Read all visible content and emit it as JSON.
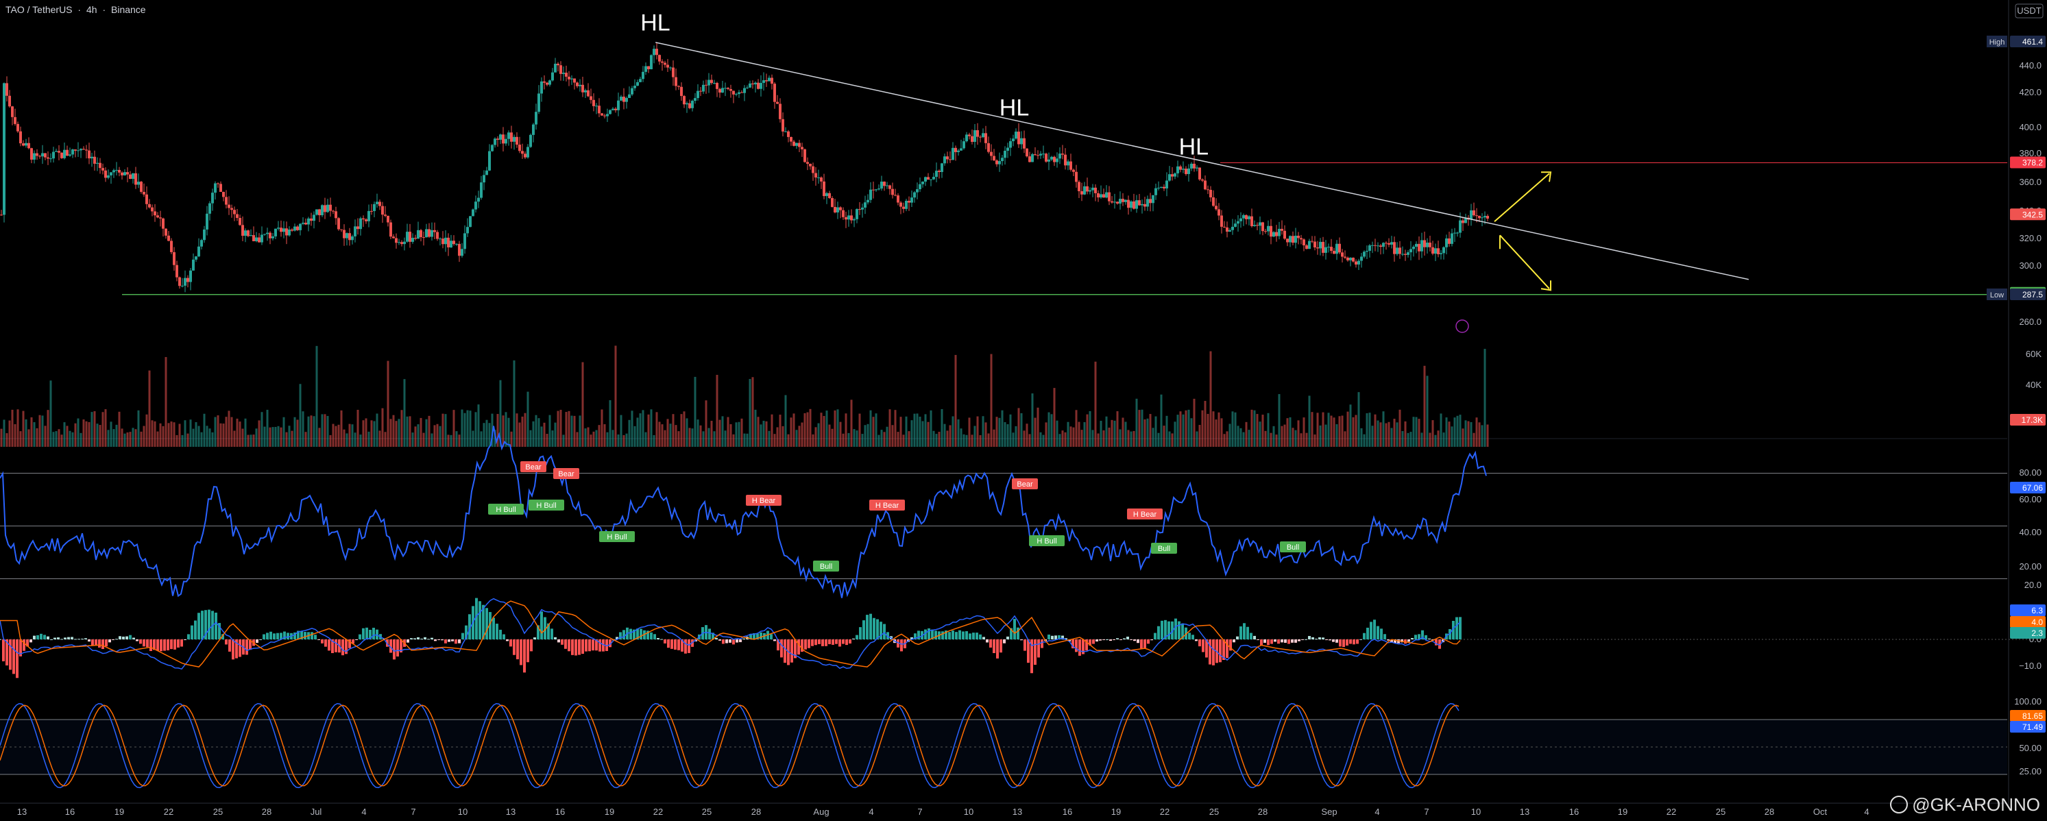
{
  "header": {
    "symbol": "TAO / TetherUS",
    "interval": "4h",
    "exchange": "Binance",
    "sep": "·"
  },
  "currency_badge": "USDT",
  "watermark": "@GK-ARONNO",
  "colors": {
    "bull": "#26a69a",
    "bear": "#ef5350",
    "rsi": "#2962ff",
    "macd": "#2962ff",
    "signal": "#ff6d00",
    "trendline": "#d1d4dc",
    "support": "#4caf50",
    "resistance": "#f23645",
    "arrow": "#ffeb3b"
  },
  "price_axis": {
    "ticks": [
      "440.0",
      "420.0",
      "400.0",
      "380.0",
      "360.0",
      "340.0",
      "320.0",
      "300.0",
      "280.0",
      "260.0"
    ],
    "high_label": "High",
    "high_value": "461.4",
    "low_label": "Low",
    "low_value": "287.5",
    "resistance_value": "378.2",
    "current_value": "342.5",
    "support_value": "287.6"
  },
  "volume_axis": {
    "ticks": [
      "60K",
      "40K",
      "20K"
    ],
    "current": "17.3K"
  },
  "rsi_axis": {
    "ticks": [
      "80.00",
      "60.00",
      "40.00",
      "20.00"
    ],
    "current": "67.06"
  },
  "macd_axis": {
    "ticks": [
      "20.0",
      "10.0",
      "0.0",
      "−10.0"
    ],
    "v1": "6.3",
    "v2": "4.0",
    "v3": "2.3"
  },
  "stoch_axis": {
    "ticks": [
      "100.00",
      "75.00",
      "50.00",
      "25.00"
    ],
    "v1": "81.65",
    "v2": "71.49"
  },
  "x_axis_labels": [
    "13",
    "16",
    "19",
    "22",
    "25",
    "28",
    "Jul",
    "4",
    "7",
    "10",
    "13",
    "16",
    "19",
    "22",
    "25",
    "28",
    "Aug",
    "4",
    "7",
    "10",
    "13",
    "16",
    "19",
    "22",
    "25",
    "28",
    "Sep",
    "4",
    "7",
    "10",
    "13",
    "16",
    "19",
    "22",
    "25",
    "28",
    "Oct",
    "4"
  ],
  "annotations": {
    "hl1": "HL",
    "hl2": "HL",
    "hl3": "HL"
  },
  "divergence_labels": [
    {
      "text": "Bear",
      "type": "bear"
    },
    {
      "text": "Bear",
      "type": "bear"
    },
    {
      "text": "H Bull",
      "type": "bull"
    },
    {
      "text": "H Bull",
      "type": "bull"
    },
    {
      "text": "H Bull",
      "type": "bull"
    },
    {
      "text": "H Bear",
      "type": "bear"
    },
    {
      "text": "Bull",
      "type": "bull"
    },
    {
      "text": "H Bear",
      "type": "bear"
    },
    {
      "text": "Bear",
      "type": "bear"
    },
    {
      "text": "H Bull",
      "type": "bull"
    },
    {
      "text": "H Bear",
      "type": "bear"
    },
    {
      "text": "Bull",
      "type": "bull"
    },
    {
      "text": "Bull",
      "type": "bull"
    }
  ],
  "chart_data": {
    "type": "candlestick",
    "title": "TAO / TetherUS · 4h · Binance",
    "ylim": [
      250,
      470
    ],
    "price_path": [
      {
        "date": "Jun 12",
        "close": 436
      },
      {
        "date": "Jun 13",
        "close": 395
      },
      {
        "date": "Jun 14",
        "close": 380
      },
      {
        "date": "Jun 16",
        "close": 385
      },
      {
        "date": "Jun 17",
        "close": 390
      },
      {
        "date": "Jun 18",
        "close": 370
      },
      {
        "date": "Jun 19",
        "close": 375
      },
      {
        "date": "Jun 20",
        "close": 368
      },
      {
        "date": "Jun 22",
        "close": 330
      },
      {
        "date": "Jun 23",
        "close": 290
      },
      {
        "date": "Jun 24",
        "close": 320
      },
      {
        "date": "Jun 25",
        "close": 365
      },
      {
        "date": "Jun 26",
        "close": 348
      },
      {
        "date": "Jun 27",
        "close": 325
      },
      {
        "date": "Jun 29",
        "close": 330
      },
      {
        "date": "Jul 1",
        "close": 340
      },
      {
        "date": "Jul 2",
        "close": 350
      },
      {
        "date": "Jul 3",
        "close": 325
      },
      {
        "date": "Jul 5",
        "close": 350
      },
      {
        "date": "Jul 6",
        "close": 325
      },
      {
        "date": "Jul 8",
        "close": 330
      },
      {
        "date": "Jul 10",
        "close": 318
      },
      {
        "date": "Jul 11",
        "close": 350
      },
      {
        "date": "Jul 12",
        "close": 390
      },
      {
        "date": "Jul 13",
        "close": 398
      },
      {
        "date": "Jul 14",
        "close": 385
      },
      {
        "date": "Jul 15",
        "close": 430
      },
      {
        "date": "Jul 16",
        "close": 445
      },
      {
        "date": "Jul 17",
        "close": 432
      },
      {
        "date": "Jul 19",
        "close": 410
      },
      {
        "date": "Jul 21",
        "close": 435
      },
      {
        "date": "Jul 22",
        "close": 455
      },
      {
        "date": "Jul 23",
        "close": 440
      },
      {
        "date": "Jul 24",
        "close": 415
      },
      {
        "date": "Jul 25",
        "close": 435
      },
      {
        "date": "Jul 27",
        "close": 425
      },
      {
        "date": "Jul 29",
        "close": 435
      },
      {
        "date": "Jul 30",
        "close": 395
      },
      {
        "date": "Jul 31",
        "close": 385
      },
      {
        "date": "Aug 2",
        "close": 345
      },
      {
        "date": "Aug 3",
        "close": 340
      },
      {
        "date": "Aug 4",
        "close": 355
      },
      {
        "date": "Aug 5",
        "close": 365
      },
      {
        "date": "Aug 6",
        "close": 348
      },
      {
        "date": "Aug 8",
        "close": 370
      },
      {
        "date": "Aug 10",
        "close": 395
      },
      {
        "date": "Aug 11",
        "close": 398
      },
      {
        "date": "Aug 12",
        "close": 375
      },
      {
        "date": "Aug 13",
        "close": 400
      },
      {
        "date": "Aug 14",
        "close": 380
      },
      {
        "date": "Aug 16",
        "close": 383
      },
      {
        "date": "Aug 17",
        "close": 360
      },
      {
        "date": "Aug 19",
        "close": 353
      },
      {
        "date": "Aug 20",
        "close": 348
      },
      {
        "date": "Aug 21",
        "close": 350
      },
      {
        "date": "Aug 23",
        "close": 372
      },
      {
        "date": "Aug 24",
        "close": 376
      },
      {
        "date": "Aug 25",
        "close": 355
      },
      {
        "date": "Aug 26",
        "close": 330
      },
      {
        "date": "Aug 27",
        "close": 340
      },
      {
        "date": "Aug 28",
        "close": 335
      },
      {
        "date": "Aug 30",
        "close": 325
      },
      {
        "date": "Sep 1",
        "close": 320
      },
      {
        "date": "Sep 2",
        "close": 318
      },
      {
        "date": "Sep 3",
        "close": 310
      },
      {
        "date": "Sep 4",
        "close": 325
      },
      {
        "date": "Sep 6",
        "close": 316
      },
      {
        "date": "Sep 7",
        "close": 322
      },
      {
        "date": "Sep 8",
        "close": 318
      },
      {
        "date": "Sep 9",
        "close": 330
      },
      {
        "date": "Sep 10",
        "close": 345
      },
      {
        "date": "Sep 11",
        "close": 342.5
      }
    ],
    "high": 461.4,
    "low": 287.5,
    "resistance": 378.2,
    "support": 287.6,
    "current": 342.5,
    "trendline": [
      {
        "date": "Jul 22",
        "price": 461
      },
      {
        "date": "Sep 27",
        "price": 298
      }
    ],
    "volume": {
      "current": 17300,
      "ylim": [
        0,
        80000
      ]
    },
    "rsi": {
      "current": 67.06,
      "levels": [
        70,
        50,
        30
      ],
      "ylim": [
        10,
        95
      ],
      "path": [
        {
          "date": "Jun 12",
          "value": 50
        },
        {
          "date": "Jun 13",
          "value": 37
        },
        {
          "date": "Jun 14",
          "value": 42
        },
        {
          "date": "Jun 17",
          "value": 45
        },
        {
          "date": "Jun 18",
          "value": 38
        },
        {
          "date": "Jun 20",
          "value": 43
        },
        {
          "date": "Jun 22",
          "value": 28
        },
        {
          "date": "Jun 23",
          "value": 25
        },
        {
          "date": "Jun 24",
          "value": 45
        },
        {
          "date": "Jun 25",
          "value": 65
        },
        {
          "date": "Jun 26",
          "value": 50
        },
        {
          "date": "Jun 27",
          "value": 40
        },
        {
          "date": "Jul 1",
          "value": 60
        },
        {
          "date": "Jul 3",
          "value": 40
        },
        {
          "date": "Jul 5",
          "value": 55
        },
        {
          "date": "Jul 6",
          "value": 40
        },
        {
          "date": "Jul 8",
          "value": 43
        },
        {
          "date": "Jul 10",
          "value": 40
        },
        {
          "date": "Jul 11",
          "value": 70
        },
        {
          "date": "Jul 12",
          "value": 85
        },
        {
          "date": "Jul 13",
          "value": 80
        },
        {
          "date": "Jul 14",
          "value": 55
        },
        {
          "date": "Jul 15",
          "value": 75
        },
        {
          "date": "Jul 16",
          "value": 72
        },
        {
          "date": "Jul 17",
          "value": 60
        },
        {
          "date": "Jul 19",
          "value": 45
        },
        {
          "date": "Jul 21",
          "value": 60
        },
        {
          "date": "Jul 22",
          "value": 63
        },
        {
          "date": "Jul 23",
          "value": 55
        },
        {
          "date": "Jul 24",
          "value": 45
        },
        {
          "date": "Jul 25",
          "value": 56
        },
        {
          "date": "Jul 27",
          "value": 50
        },
        {
          "date": "Jul 29",
          "value": 60
        },
        {
          "date": "Jul 30",
          "value": 40
        },
        {
          "date": "Jul 31",
          "value": 33
        },
        {
          "date": "Aug 2",
          "value": 27
        },
        {
          "date": "Aug 3",
          "value": 25
        },
        {
          "date": "Aug 4",
          "value": 45
        },
        {
          "date": "Aug 5",
          "value": 55
        },
        {
          "date": "Aug 6",
          "value": 45
        },
        {
          "date": "Aug 8",
          "value": 58
        },
        {
          "date": "Aug 10",
          "value": 68
        },
        {
          "date": "Aug 11",
          "value": 70
        },
        {
          "date": "Aug 12",
          "value": 55
        },
        {
          "date": "Aug 13",
          "value": 70
        },
        {
          "date": "Aug 14",
          "value": 45
        },
        {
          "date": "Aug 16",
          "value": 52
        },
        {
          "date": "Aug 17",
          "value": 40
        },
        {
          "date": "Aug 19",
          "value": 40
        },
        {
          "date": "Aug 20",
          "value": 42
        },
        {
          "date": "Aug 21",
          "value": 35
        },
        {
          "date": "Aug 23",
          "value": 62
        },
        {
          "date": "Aug 24",
          "value": 63
        },
        {
          "date": "Aug 25",
          "value": 45
        },
        {
          "date": "Aug 26",
          "value": 32
        },
        {
          "date": "Aug 27",
          "value": 45
        },
        {
          "date": "Aug 28",
          "value": 42
        },
        {
          "date": "Aug 30",
          "value": 38
        },
        {
          "date": "Sep 1",
          "value": 42
        },
        {
          "date": "Sep 2",
          "value": 38
        },
        {
          "date": "Sep 3",
          "value": 35
        },
        {
          "date": "Sep 4",
          "value": 50
        },
        {
          "date": "Sep 6",
          "value": 45
        },
        {
          "date": "Sep 7",
          "value": 52
        },
        {
          "date": "Sep 8",
          "value": 45
        },
        {
          "date": "Sep 9",
          "value": 60
        },
        {
          "date": "Sep 10",
          "value": 78
        },
        {
          "date": "Sep 11",
          "value": 67.06
        }
      ]
    },
    "macd": {
      "current_macd": 6.3,
      "current_signal": 4.0,
      "current_hist": 2.3
    },
    "stoch_rsi": {
      "k": 81.65,
      "d": 71.49,
      "levels": [
        80,
        50,
        20
      ],
      "ylim": [
        0,
        100
      ]
    }
  }
}
